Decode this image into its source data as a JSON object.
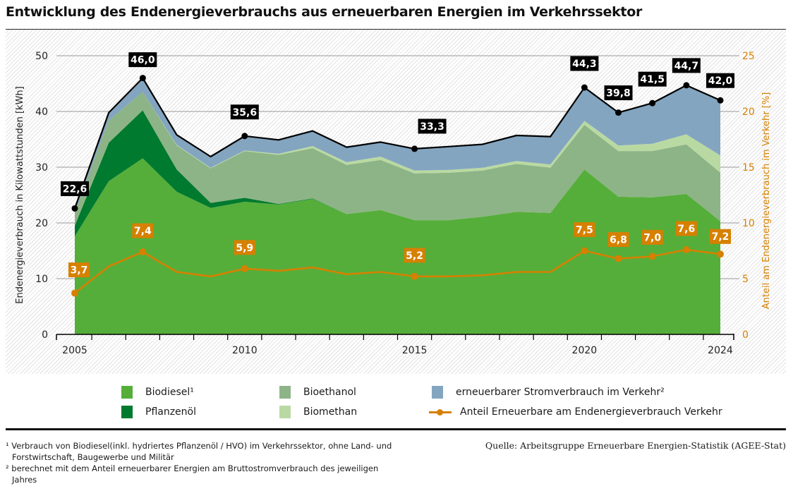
{
  "title": "Entwicklung des Endenergieverbrauchs aus erneuerbaren Energien im Verkehrssektor",
  "chart_data": {
    "type": "area",
    "stacked": true,
    "title": "Entwicklung des Endenergieverbrauchs aus erneuerbaren Energien im Verkehrssektor",
    "x": [
      2005,
      2006,
      2007,
      2008,
      2009,
      2010,
      2011,
      2012,
      2013,
      2014,
      2015,
      2016,
      2017,
      2018,
      2019,
      2020,
      2021,
      2022,
      2023,
      2024
    ],
    "xticks_labeled": [
      "2005",
      "2010",
      "2015",
      "2020",
      "2024"
    ],
    "xlabel": "",
    "ylabel": "Endenergieverbrauch in Kilowattstunden [kWh]",
    "ylim": [
      0,
      50
    ],
    "yticks": [
      "0",
      "10",
      "20",
      "30",
      "40",
      "50"
    ],
    "y2label": "Anteil am Endenergieverbrauch im Verkehr [%]",
    "y2lim": [
      0,
      25
    ],
    "y2ticks": [
      "0",
      "5",
      "10",
      "15",
      "20",
      "25"
    ],
    "grid": true,
    "legend_position": "bottom",
    "series": [
      {
        "name": "Biodiesel¹",
        "color": "#55ae3a",
        "values": [
          17.6,
          27.5,
          31.6,
          25.6,
          22.7,
          23.8,
          23.3,
          24.3,
          21.6,
          22.3,
          20.5,
          20.5,
          21.1,
          22.0,
          21.8,
          29.6,
          24.7,
          24.6,
          25.2,
          20.3
        ]
      },
      {
        "name": "Pflanzenöl",
        "color": "#007a2e",
        "values": [
          1.9,
          6.9,
          8.6,
          4.0,
          0.9,
          0.7,
          0.1,
          0.1,
          0.0,
          0.0,
          0.0,
          0.0,
          0.0,
          0.0,
          0.0,
          0.0,
          0.0,
          0.0,
          0.0,
          0.0
        ]
      },
      {
        "name": "Bioethanol",
        "color": "#8db486",
        "values": [
          2.3,
          4.0,
          3.3,
          4.3,
          6.2,
          8.4,
          8.8,
          9.0,
          8.8,
          9.0,
          8.4,
          8.5,
          8.3,
          8.6,
          8.1,
          8.0,
          8.2,
          8.3,
          8.9,
          8.7
        ]
      },
      {
        "name": "Biomethan",
        "color": "#b9d9a2",
        "values": [
          0.0,
          0.0,
          0.0,
          0.1,
          0.1,
          0.1,
          0.2,
          0.4,
          0.5,
          0.6,
          0.5,
          0.5,
          0.5,
          0.5,
          0.6,
          0.7,
          1.0,
          1.3,
          1.8,
          3.1
        ]
      },
      {
        "name": "erneuerbarer Stromverbrauch im Verkehr²",
        "color": "#83a5c0",
        "values": [
          0.8,
          1.4,
          2.5,
          1.8,
          2.0,
          2.6,
          2.5,
          2.7,
          2.7,
          2.6,
          3.9,
          4.2,
          4.2,
          4.6,
          5.0,
          6.0,
          5.9,
          7.3,
          8.8,
          9.9
        ]
      }
    ],
    "totals": [
      22.6,
      39.8,
      46.0,
      35.8,
      31.9,
      35.6,
      34.9,
      36.5,
      33.6,
      34.5,
      33.3,
      33.7,
      34.1,
      35.7,
      35.5,
      44.3,
      39.8,
      41.5,
      44.7,
      42.0
    ],
    "total_labels": [
      {
        "year": 2005,
        "label": "22,6"
      },
      {
        "year": 2007,
        "label": "46,0"
      },
      {
        "year": 2010,
        "label": "35,6"
      },
      {
        "year": 2015,
        "label": "33,3"
      },
      {
        "year": 2020,
        "label": "44,3"
      },
      {
        "year": 2021,
        "label": "39,8"
      },
      {
        "year": 2022,
        "label": "41,5"
      },
      {
        "year": 2023,
        "label": "44,7"
      },
      {
        "year": 2024,
        "label": "42,0"
      }
    ],
    "share_series": {
      "name": "Anteil Erneuerbare am Endenergieverbrauch Verkehr",
      "color": "#d68000",
      "axis": "right",
      "values": [
        3.7,
        6.1,
        7.4,
        5.6,
        5.2,
        5.9,
        5.7,
        6.0,
        5.4,
        5.6,
        5.2,
        5.2,
        5.3,
        5.6,
        5.6,
        7.5,
        6.8,
        7.0,
        7.6,
        7.2
      ]
    },
    "share_labels": [
      {
        "year": 2005,
        "label": "3,7"
      },
      {
        "year": 2007,
        "label": "7,4"
      },
      {
        "year": 2010,
        "label": "5,9"
      },
      {
        "year": 2015,
        "label": "5,2"
      },
      {
        "year": 2020,
        "label": "7,5"
      },
      {
        "year": 2021,
        "label": "6,8"
      },
      {
        "year": 2022,
        "label": "7,0"
      },
      {
        "year": 2023,
        "label": "7,6"
      },
      {
        "year": 2024,
        "label": "7,2"
      }
    ]
  },
  "colors": {
    "total_line": "#000000",
    "share_line": "#d68000",
    "right_axis_text": "#d68000",
    "grid": "#9a9a9a"
  },
  "legend": [
    {
      "label": "Biodiesel¹",
      "color": "#55ae3a",
      "kind": "area"
    },
    {
      "label": "Pflanzenöl",
      "color": "#007a2e",
      "kind": "area"
    },
    {
      "label": "Bioethanol",
      "color": "#8db486",
      "kind": "area"
    },
    {
      "label": "Biomethan",
      "color": "#b9d9a2",
      "kind": "area"
    },
    {
      "label": "erneuerbarer Stromverbrauch im Verkehr²",
      "color": "#83a5c0",
      "kind": "area"
    },
    {
      "label": "Anteil Erneuerbare am Endenergieverbrauch Verkehr",
      "color": "#d68000",
      "kind": "line"
    }
  ],
  "footnotes": [
    "¹ Verbrauch von Biodiesel(inkl. hydriertes Pflanzenöl / HVO) im Verkehrssektor, ohne Land- und Forstwirtschaft, Baugewerbe und Militär",
    "² berechnet mit dem Anteil erneuerbarer Energien am Bruttostromverbrauch des jeweiligen Jahres"
  ],
  "source": "Quelle: Arbeitsgruppe Erneuerbare Energien-Statistik (AGEE-Stat)"
}
